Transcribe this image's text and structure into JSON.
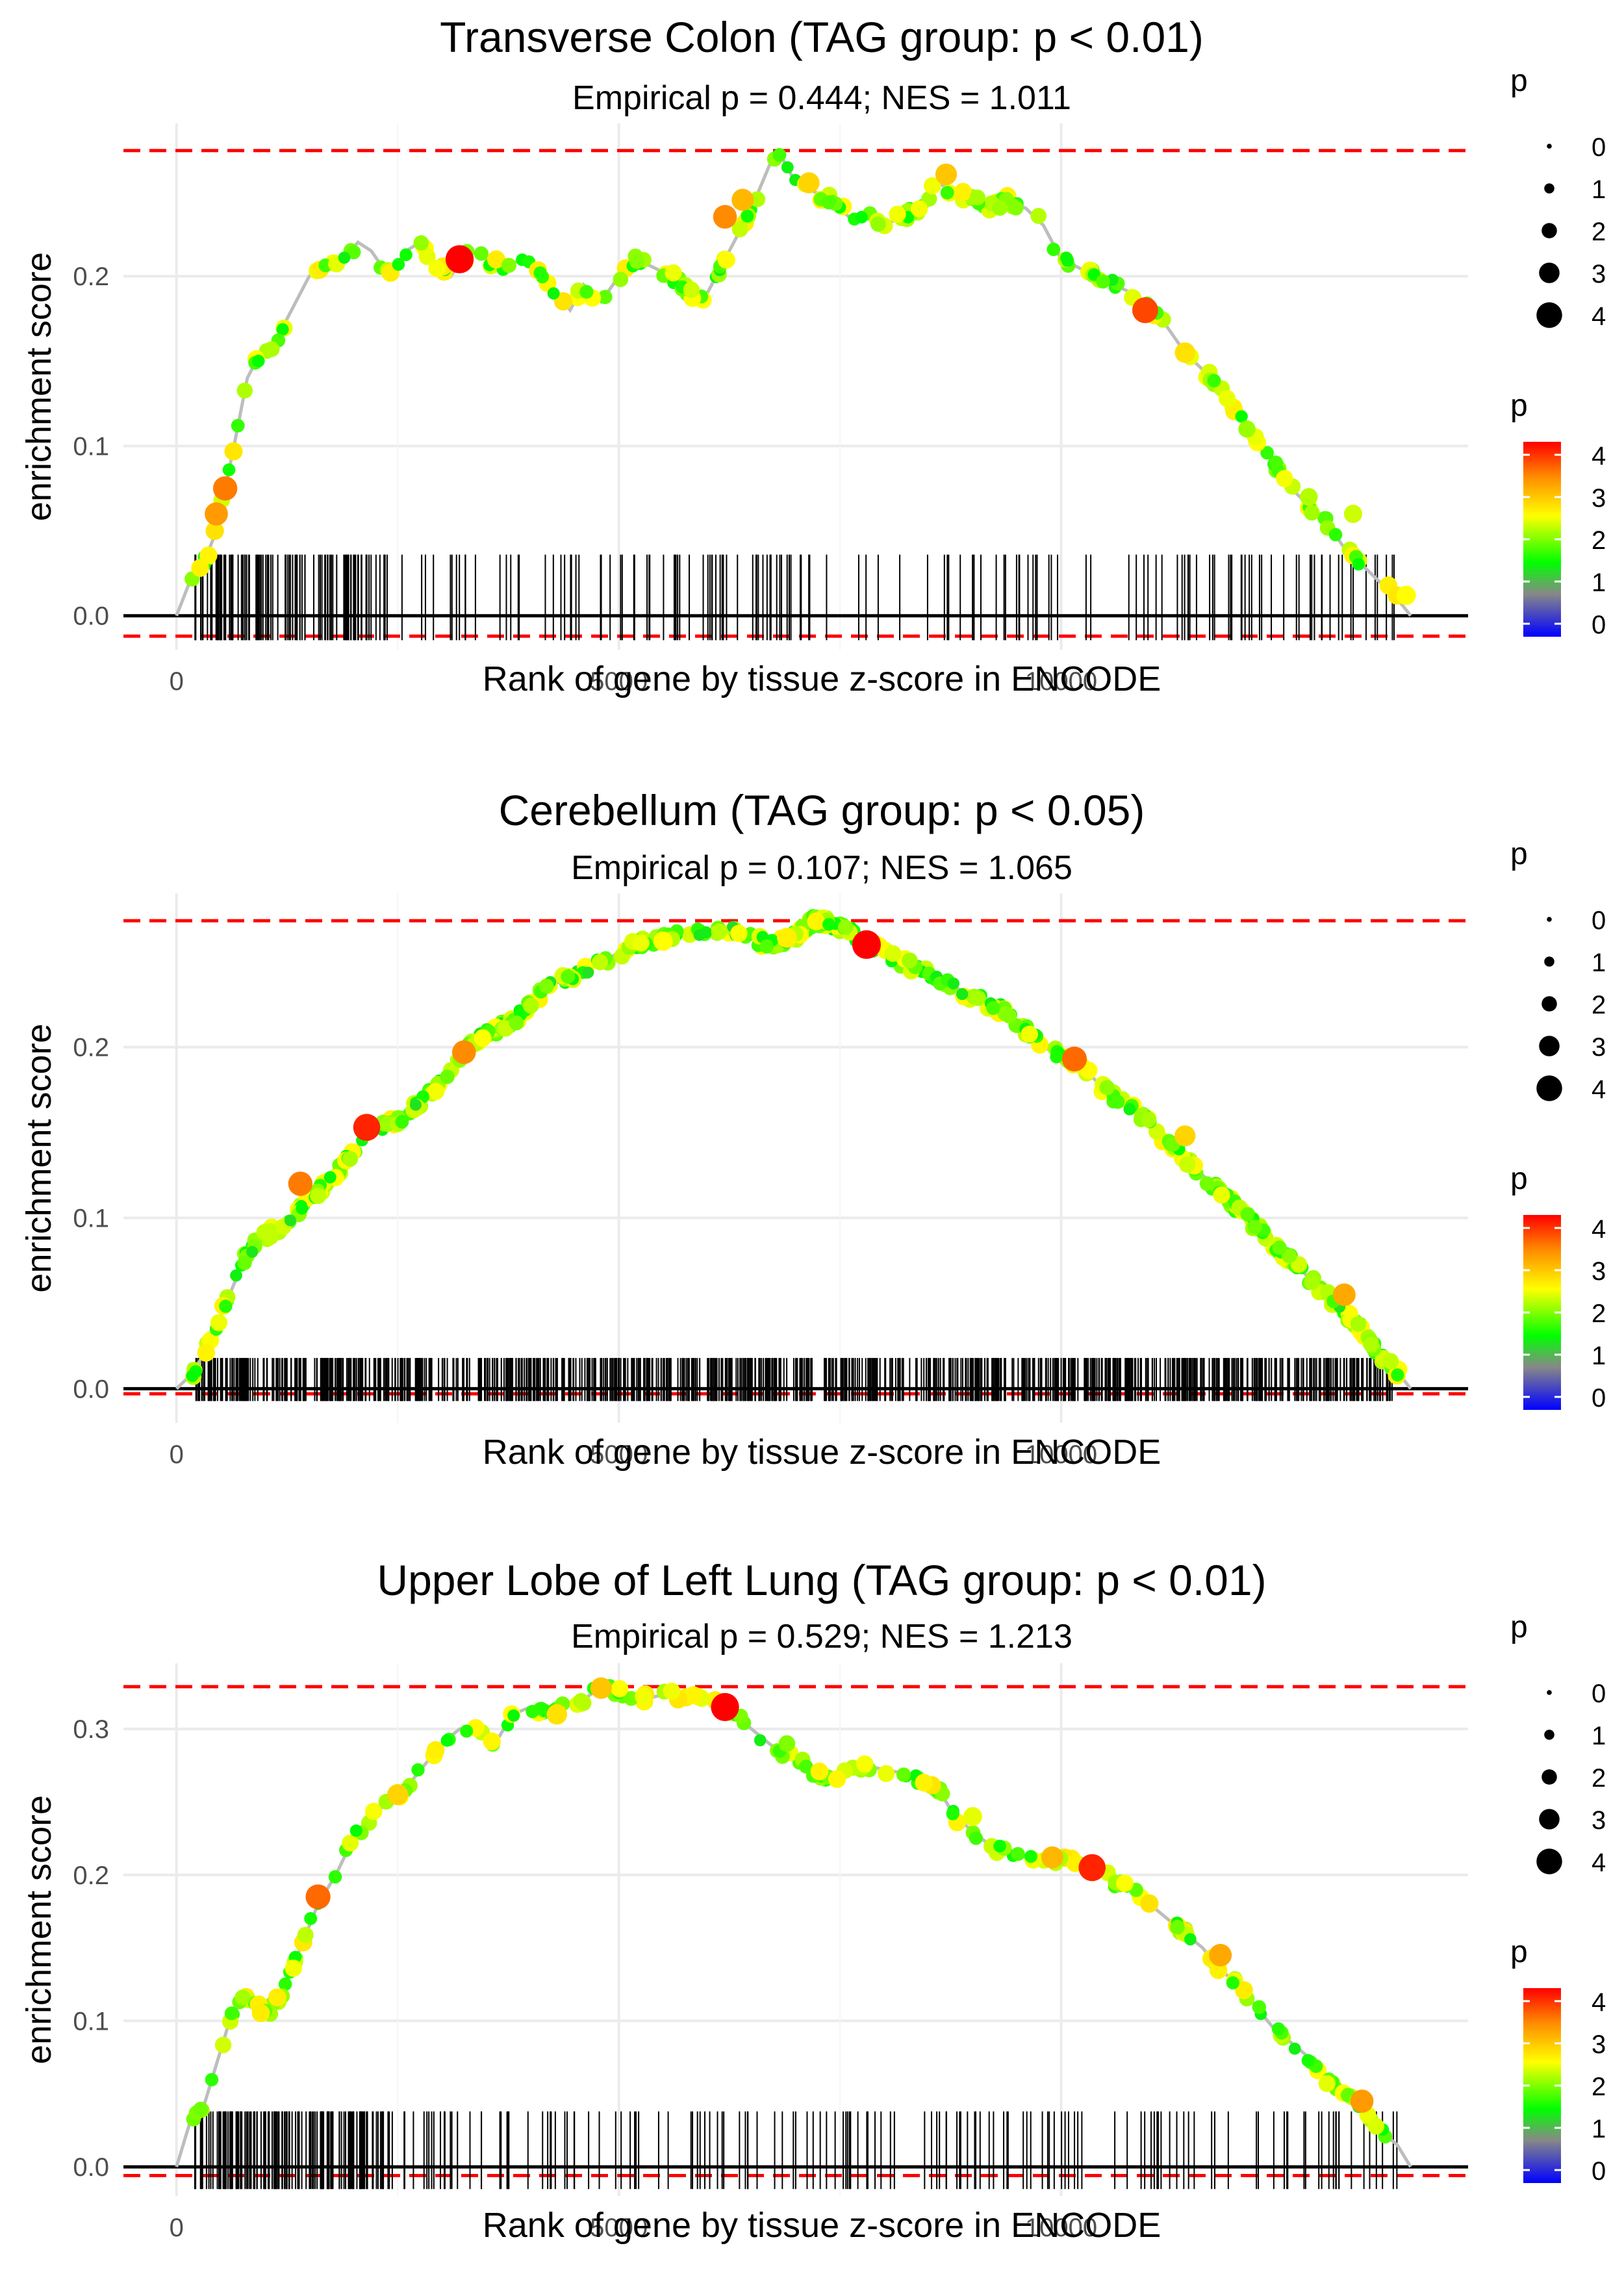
{
  "chart_data": [
    {
      "type": "line",
      "title": "Transverse Colon (TAG group: p < 0.01)",
      "subtitle": "Empirical p = 0.444; NES = 1.011",
      "xlabel": "Rank of gene by tissue z-score in ENCODE",
      "ylabel": "enrichment score",
      "xlim": [
        -600,
        14600
      ],
      "ylim": [
        -0.02,
        0.29
      ],
      "x_ticks": [
        0,
        5000,
        10000
      ],
      "x_tick_labels": [
        "0",
        "5000",
        "10000"
      ],
      "y_ticks": [
        0.0,
        0.1,
        0.2
      ],
      "y_tick_labels": [
        "0.0",
        "0.1",
        "0.2"
      ],
      "max_line": 0.274,
      "min_line": -0.012,
      "rug_density": 260,
      "rug_height": 0.036,
      "series": [
        {
          "name": "running enrichment score",
          "x": [
            0,
            150,
            300,
            450,
            550,
            650,
            800,
            950,
            1100,
            1300,
            1500,
            1700,
            1900,
            2050,
            2200,
            2400,
            2600,
            2750,
            2950,
            3100,
            3300,
            3500,
            3700,
            3900,
            4100,
            4300,
            4450,
            4600,
            4800,
            5000,
            5200,
            5400,
            5600,
            5800,
            5950,
            6100,
            6300,
            6500,
            6700,
            6800,
            7000,
            7200,
            7400,
            7600,
            7800,
            8000,
            8200,
            8400,
            8600,
            8800,
            9000,
            9200,
            9400,
            9600,
            9800,
            10000,
            10200,
            10400,
            10600,
            10800,
            11000,
            11200,
            11400,
            11600,
            11800,
            12000,
            12200,
            12400,
            12600,
            12800,
            13000,
            13200,
            13400,
            13600,
            13800,
            13950
          ],
          "y": [
            0.0,
            0.02,
            0.03,
            0.05,
            0.075,
            0.1,
            0.14,
            0.155,
            0.16,
            0.18,
            0.2,
            0.205,
            0.21,
            0.22,
            0.215,
            0.2,
            0.215,
            0.22,
            0.205,
            0.2,
            0.215,
            0.21,
            0.205,
            0.21,
            0.2,
            0.19,
            0.18,
            0.195,
            0.185,
            0.2,
            0.21,
            0.205,
            0.2,
            0.19,
            0.185,
            0.2,
            0.22,
            0.24,
            0.265,
            0.274,
            0.255,
            0.25,
            0.245,
            0.235,
            0.235,
            0.23,
            0.235,
            0.24,
            0.255,
            0.25,
            0.245,
            0.24,
            0.245,
            0.24,
            0.23,
            0.21,
            0.205,
            0.2,
            0.195,
            0.19,
            0.18,
            0.17,
            0.155,
            0.145,
            0.135,
            0.12,
            0.105,
            0.09,
            0.075,
            0.065,
            0.055,
            0.04,
            0.03,
            0.02,
            0.01,
            0.0
          ]
        }
      ],
      "highlight_points": [
        {
          "x": 3200,
          "y": 0.21,
          "p": 4.2
        },
        {
          "x": 550,
          "y": 0.075,
          "p": 3.5
        },
        {
          "x": 450,
          "y": 0.06,
          "p": 3.3
        },
        {
          "x": 6200,
          "y": 0.235,
          "p": 3.4
        },
        {
          "x": 6400,
          "y": 0.245,
          "p": 3.1
        },
        {
          "x": 10950,
          "y": 0.18,
          "p": 3.8
        },
        {
          "x": 7150,
          "y": 0.255,
          "p": 2.9
        },
        {
          "x": 8700,
          "y": 0.26,
          "p": 3.0
        },
        {
          "x": 11400,
          "y": 0.155,
          "p": 2.8
        },
        {
          "x": 12100,
          "y": 0.11,
          "p": 2.2
        },
        {
          "x": 12800,
          "y": 0.07,
          "p": 2.3
        },
        {
          "x": 13300,
          "y": 0.06,
          "p": 2.4
        },
        {
          "x": 13900,
          "y": 0.012,
          "p": 2.6
        }
      ],
      "legend_size": {
        "title": "p",
        "values": [
          "0",
          "1",
          "2",
          "3",
          "4"
        ]
      },
      "legend_color": {
        "title": "p",
        "values": [
          "4",
          "3",
          "2",
          "1",
          "0"
        ],
        "colors": [
          "#ff0000",
          "#ff8c00",
          "#ffff00",
          "#00ff00",
          "#888888",
          "#0000ff"
        ]
      }
    },
    {
      "type": "line",
      "title": "Cerebellum (TAG group: p < 0.05)",
      "subtitle": "Empirical p = 0.107; NES = 1.065",
      "xlabel": "Rank of gene by tissue z-score in ENCODE",
      "ylabel": "enrichment score",
      "xlim": [
        -600,
        14600
      ],
      "ylim": [
        -0.02,
        0.29
      ],
      "x_ticks": [
        0,
        5000,
        10000
      ],
      "x_tick_labels": [
        "0",
        "5000",
        "10000"
      ],
      "y_ticks": [
        0.0,
        0.1,
        0.2
      ],
      "y_tick_labels": [
        "0.0",
        "0.1",
        "0.2"
      ],
      "max_line": 0.274,
      "min_line": -0.003,
      "rug_density": 900,
      "rug_height": 0.018,
      "series": [
        {
          "name": "running enrichment score",
          "x": [
            0,
            200,
            400,
            600,
            800,
            1000,
            1200,
            1400,
            1600,
            1800,
            2000,
            2200,
            2400,
            2600,
            2800,
            3000,
            3200,
            3400,
            3600,
            3800,
            4000,
            4200,
            4400,
            4600,
            4800,
            5000,
            5200,
            5400,
            5600,
            5800,
            6000,
            6200,
            6400,
            6600,
            6800,
            7000,
            7200,
            7400,
            7600,
            7800,
            8000,
            8200,
            8400,
            8600,
            8800,
            9000,
            9200,
            9400,
            9600,
            9800,
            10000,
            10200,
            10400,
            10600,
            10800,
            11000,
            11200,
            11400,
            11600,
            11800,
            12000,
            12200,
            12400,
            12600,
            12800,
            13000,
            13200,
            13400,
            13600,
            13800,
            13950
          ],
          "y": [
            0.0,
            0.01,
            0.03,
            0.055,
            0.08,
            0.09,
            0.095,
            0.105,
            0.115,
            0.125,
            0.14,
            0.15,
            0.155,
            0.16,
            0.17,
            0.18,
            0.195,
            0.205,
            0.21,
            0.215,
            0.225,
            0.235,
            0.24,
            0.245,
            0.25,
            0.255,
            0.26,
            0.262,
            0.265,
            0.265,
            0.268,
            0.27,
            0.265,
            0.262,
            0.26,
            0.265,
            0.274,
            0.272,
            0.268,
            0.26,
            0.255,
            0.25,
            0.245,
            0.24,
            0.235,
            0.23,
            0.225,
            0.22,
            0.21,
            0.2,
            0.195,
            0.19,
            0.18,
            0.17,
            0.165,
            0.155,
            0.145,
            0.135,
            0.125,
            0.115,
            0.105,
            0.095,
            0.085,
            0.075,
            0.065,
            0.055,
            0.045,
            0.035,
            0.02,
            0.01,
            0.0
          ]
        }
      ],
      "highlight_points": [
        {
          "x": 7800,
          "y": 0.26,
          "p": 4.3
        },
        {
          "x": 2150,
          "y": 0.153,
          "p": 4.0
        },
        {
          "x": 1400,
          "y": 0.12,
          "p": 3.5
        },
        {
          "x": 3250,
          "y": 0.197,
          "p": 3.4
        },
        {
          "x": 10150,
          "y": 0.193,
          "p": 3.6
        },
        {
          "x": 11400,
          "y": 0.148,
          "p": 2.9
        },
        {
          "x": 13200,
          "y": 0.055,
          "p": 3.2
        },
        {
          "x": 5500,
          "y": 0.262,
          "p": 2.6
        },
        {
          "x": 6900,
          "y": 0.264,
          "p": 2.7
        }
      ],
      "legend_size": {
        "title": "p",
        "values": [
          "0",
          "1",
          "2",
          "3",
          "4"
        ]
      },
      "legend_color": {
        "title": "p",
        "values": [
          "4",
          "3",
          "2",
          "1",
          "0"
        ],
        "colors": [
          "#ff0000",
          "#ff8c00",
          "#ffff00",
          "#00ff00",
          "#888888",
          "#0000ff"
        ]
      }
    },
    {
      "type": "line",
      "title": "Upper Lobe of Left Lung (TAG group: p < 0.01)",
      "subtitle": "Empirical p = 0.529; NES = 1.213",
      "xlabel": "Rank of gene by tissue z-score in ENCODE",
      "ylabel": "enrichment score",
      "xlim": [
        -600,
        14600
      ],
      "ylim": [
        -0.02,
        0.345
      ],
      "x_ticks": [
        0,
        5000,
        10000
      ],
      "x_tick_labels": [
        "0",
        "5000",
        "10000"
      ],
      "y_ticks": [
        0.0,
        0.1,
        0.2,
        0.3
      ],
      "y_tick_labels": [
        "0.0",
        "0.1",
        "0.2",
        "0.3"
      ],
      "max_line": 0.329,
      "min_line": -0.006,
      "rug_density": 300,
      "rug_height": 0.038,
      "series": [
        {
          "name": "running enrichment score",
          "x": [
            0,
            150,
            300,
            450,
            600,
            750,
            900,
            1050,
            1200,
            1400,
            1600,
            1800,
            2000,
            2200,
            2400,
            2600,
            2800,
            3000,
            3200,
            3400,
            3600,
            3800,
            4000,
            4200,
            4400,
            4600,
            4800,
            5000,
            5200,
            5400,
            5600,
            5800,
            6000,
            6200,
            6400,
            6600,
            6800,
            7000,
            7200,
            7400,
            7600,
            7800,
            8000,
            8200,
            8400,
            8600,
            8800,
            9000,
            9200,
            9400,
            9600,
            9800,
            10000,
            10200,
            10400,
            10600,
            10800,
            11000,
            11200,
            11400,
            11600,
            11800,
            12000,
            12200,
            12400,
            12600,
            12800,
            13000,
            13200,
            13400,
            13600,
            13800,
            13950
          ],
          "y": [
            0.0,
            0.03,
            0.04,
            0.07,
            0.1,
            0.115,
            0.11,
            0.105,
            0.12,
            0.15,
            0.18,
            0.2,
            0.225,
            0.24,
            0.25,
            0.26,
            0.275,
            0.29,
            0.3,
            0.3,
            0.29,
            0.31,
            0.315,
            0.31,
            0.318,
            0.32,
            0.329,
            0.325,
            0.32,
            0.322,
            0.325,
            0.32,
            0.322,
            0.315,
            0.305,
            0.295,
            0.285,
            0.28,
            0.27,
            0.265,
            0.27,
            0.275,
            0.272,
            0.27,
            0.265,
            0.26,
            0.24,
            0.23,
            0.22,
            0.215,
            0.212,
            0.21,
            0.21,
            0.208,
            0.205,
            0.195,
            0.19,
            0.18,
            0.17,
            0.16,
            0.15,
            0.135,
            0.125,
            0.11,
            0.095,
            0.085,
            0.075,
            0.06,
            0.05,
            0.04,
            0.025,
            0.015,
            0.0
          ]
        }
      ],
      "highlight_points": [
        {
          "x": 6200,
          "y": 0.315,
          "p": 4.2
        },
        {
          "x": 10350,
          "y": 0.205,
          "p": 4.0
        },
        {
          "x": 1600,
          "y": 0.185,
          "p": 3.6
        },
        {
          "x": 4800,
          "y": 0.328,
          "p": 3.0
        },
        {
          "x": 4300,
          "y": 0.31,
          "p": 2.8
        },
        {
          "x": 2500,
          "y": 0.255,
          "p": 2.9
        },
        {
          "x": 9900,
          "y": 0.212,
          "p": 3.1
        },
        {
          "x": 11800,
          "y": 0.145,
          "p": 3.2
        },
        {
          "x": 13400,
          "y": 0.045,
          "p": 3.3
        },
        {
          "x": 6900,
          "y": 0.29,
          "p": 2.1
        },
        {
          "x": 9000,
          "y": 0.24,
          "p": 2.5
        }
      ],
      "legend_size": {
        "title": "p",
        "values": [
          "0",
          "1",
          "2",
          "3",
          "4"
        ]
      },
      "legend_color": {
        "title": "p",
        "values": [
          "4",
          "3",
          "2",
          "1",
          "0"
        ],
        "colors": [
          "#ff0000",
          "#ff8c00",
          "#ffff00",
          "#00ff00",
          "#888888",
          "#0000ff"
        ]
      }
    }
  ]
}
